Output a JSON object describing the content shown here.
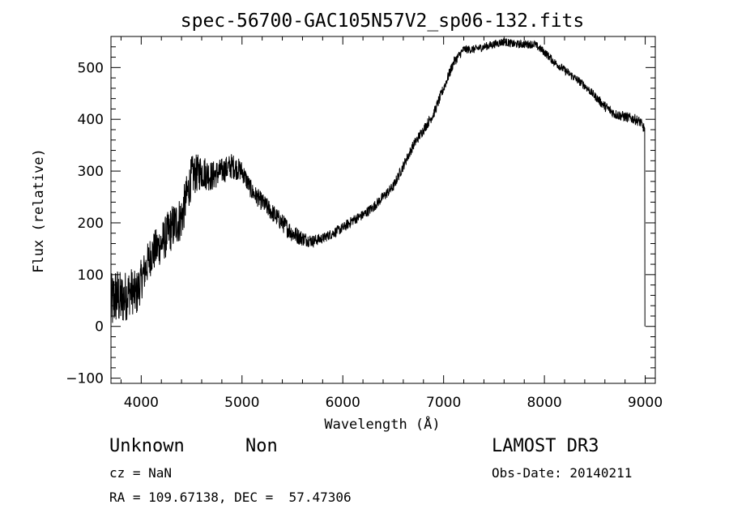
{
  "chart_data": {
    "type": "line",
    "title": "spec-56700-GAC105N57V2_sp06-132.fits",
    "xlabel": "Wavelength (Å)",
    "ylabel": "Flux (relative)",
    "xlim": [
      3700,
      9100
    ],
    "ylim": [
      -110,
      560
    ],
    "xticks": [
      4000,
      5000,
      6000,
      7000,
      8000,
      9000
    ],
    "yticks": [
      -100,
      0,
      100,
      200,
      300,
      400,
      500
    ],
    "grid": false,
    "series": [
      {
        "name": "flux",
        "anchors_x": [
          3700,
          3750,
          3800,
          3850,
          3900,
          3950,
          4000,
          4100,
          4200,
          4300,
          4400,
          4500,
          4600,
          4700,
          4800,
          4900,
          5000,
          5100,
          5200,
          5300,
          5400,
          5500,
          5600,
          5700,
          5800,
          5900,
          6000,
          6100,
          6200,
          6300,
          6400,
          6500,
          6600,
          6700,
          6800,
          6900,
          7000,
          7100,
          7200,
          7300,
          7400,
          7500,
          7600,
          7700,
          7800,
          7900,
          8000,
          8100,
          8200,
          8300,
          8400,
          8500,
          8600,
          8700,
          8800,
          8900,
          8950,
          8995
        ],
        "anchors_y": [
          40,
          60,
          50,
          60,
          70,
          60,
          90,
          140,
          160,
          190,
          210,
          290,
          300,
          290,
          300,
          310,
          300,
          260,
          240,
          220,
          200,
          180,
          170,
          165,
          170,
          180,
          190,
          205,
          215,
          230,
          250,
          270,
          310,
          350,
          380,
          410,
          460,
          510,
          535,
          535,
          540,
          545,
          550,
          545,
          545,
          545,
          530,
          510,
          495,
          480,
          465,
          445,
          425,
          410,
          405,
          400,
          395,
          380
        ],
        "noise_amplitude": [
          60,
          60,
          55,
          50,
          45,
          45,
          40,
          40,
          40,
          45,
          45,
          40,
          35,
          30,
          25,
          25,
          20,
          18,
          18,
          18,
          18,
          18,
          15,
          12,
          10,
          10,
          10,
          10,
          10,
          10,
          10,
          10,
          10,
          10,
          10,
          10,
          10,
          10,
          8,
          8,
          8,
          8,
          8,
          8,
          8,
          8,
          8,
          8,
          8,
          8,
          8,
          8,
          10,
          10,
          10,
          10,
          10,
          10
        ]
      }
    ]
  },
  "info": {
    "object_class": "Unknown",
    "object_subclass": "Non",
    "survey": "LAMOST DR3",
    "redshift": "cz = NaN",
    "obs_date": "Obs-Date: 20140211",
    "coordinates": "RA = 109.67138, DEC =  57.47306"
  }
}
